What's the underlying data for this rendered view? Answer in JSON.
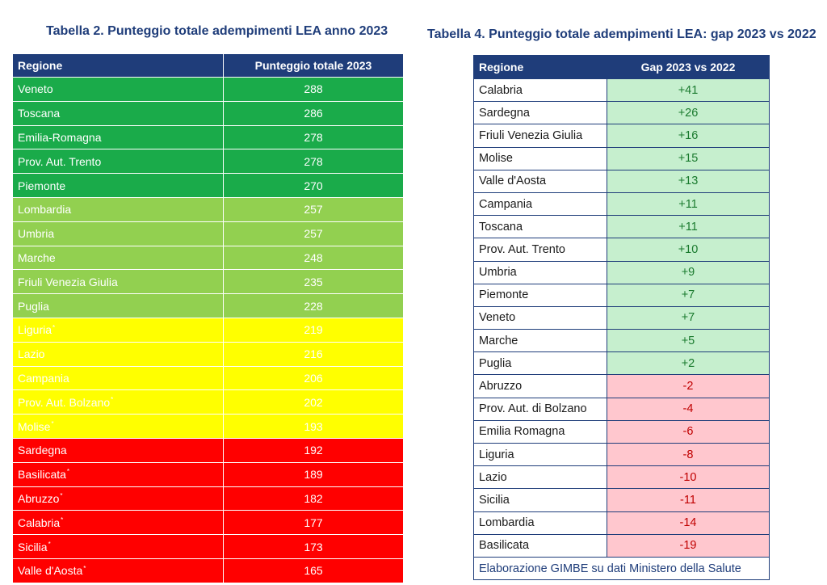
{
  "chart_data": [
    {
      "type": "table",
      "title": "Tabella 2.  Punteggio totale adempimenti LEA anno 2023",
      "columns": [
        "Regione",
        "Punteggio totale 2023"
      ],
      "rows": [
        {
          "region": "Veneto",
          "value": "288",
          "mark": "",
          "band": "green"
        },
        {
          "region": "Toscana",
          "value": "286",
          "mark": "",
          "band": "green"
        },
        {
          "region": "Emilia-Romagna",
          "value": "278",
          "mark": "",
          "band": "green"
        },
        {
          "region": "Prov. Aut. Trento",
          "value": "278",
          "mark": "",
          "band": "green"
        },
        {
          "region": "Piemonte",
          "value": "270",
          "mark": "",
          "band": "green"
        },
        {
          "region": "Lombardia",
          "value": "257",
          "mark": "",
          "band": "lgreen"
        },
        {
          "region": "Umbria",
          "value": "257",
          "mark": "",
          "band": "lgreen"
        },
        {
          "region": "Marche",
          "value": "248",
          "mark": "",
          "band": "lgreen"
        },
        {
          "region": "Friuli Venezia Giulia",
          "value": "235",
          "mark": "",
          "band": "lgreen"
        },
        {
          "region": "Puglia",
          "value": "228",
          "mark": "",
          "band": "lgreen"
        },
        {
          "region": "Liguria",
          "value": "219",
          "mark": "*",
          "band": "yellow"
        },
        {
          "region": "Lazio",
          "value": "216",
          "mark": "",
          "band": "yellow"
        },
        {
          "region": "Campania",
          "value": "206",
          "mark": "",
          "band": "yellow"
        },
        {
          "region": "Prov. Aut. Bolzano",
          "value": "202",
          "mark": "*",
          "band": "yellow"
        },
        {
          "region": "Molise",
          "value": "193",
          "mark": "*",
          "band": "yellow"
        },
        {
          "region": "Sardegna",
          "value": "192",
          "mark": "",
          "band": "red"
        },
        {
          "region": "Basilicata",
          "value": "189",
          "mark": "*",
          "band": "red"
        },
        {
          "region": "Abruzzo",
          "value": "182",
          "mark": "*",
          "band": "red"
        },
        {
          "region": "Calabria",
          "value": "177",
          "mark": "*",
          "band": "red"
        },
        {
          "region": "Sicilia",
          "value": "173",
          "mark": "*",
          "band": "red"
        },
        {
          "region": "Valle d'Aosta",
          "value": "165",
          "mark": "*",
          "band": "red"
        }
      ]
    },
    {
      "type": "table",
      "title": "Tabella 4.  Punteggio totale adempimenti LEA: gap 2023 vs 2022",
      "columns": [
        "Regione",
        "Gap 2023 vs 2022"
      ],
      "rows": [
        {
          "region": "Calabria",
          "value": "+41",
          "sign": "pos"
        },
        {
          "region": "Sardegna",
          "value": "+26",
          "sign": "pos"
        },
        {
          "region": "Friuli Venezia Giulia",
          "value": "+16",
          "sign": "pos"
        },
        {
          "region": "Molise",
          "value": "+15",
          "sign": "pos"
        },
        {
          "region": "Valle d'Aosta",
          "value": "+13",
          "sign": "pos"
        },
        {
          "region": "Campania",
          "value": "+11",
          "sign": "pos"
        },
        {
          "region": "Toscana",
          "value": "+11",
          "sign": "pos"
        },
        {
          "region": "Prov. Aut. Trento",
          "value": "+10",
          "sign": "pos"
        },
        {
          "region": "Umbria",
          "value": "+9",
          "sign": "pos"
        },
        {
          "region": "Piemonte",
          "value": "+7",
          "sign": "pos"
        },
        {
          "region": "Veneto",
          "value": "+7",
          "sign": "pos"
        },
        {
          "region": "Marche",
          "value": "+5",
          "sign": "pos"
        },
        {
          "region": "Puglia",
          "value": "+2",
          "sign": "pos"
        },
        {
          "region": "Abruzzo",
          "value": "-2",
          "sign": "neg"
        },
        {
          "region": "Prov. Aut. di Bolzano",
          "value": "-4",
          "sign": "neg"
        },
        {
          "region": "Emilia Romagna",
          "value": "-6",
          "sign": "neg"
        },
        {
          "region": "Liguria",
          "value": "-8",
          "sign": "neg"
        },
        {
          "region": "Lazio",
          "value": "-10",
          "sign": "neg"
        },
        {
          "region": "Sicilia",
          "value": "-11",
          "sign": "neg"
        },
        {
          "region": "Lombardia",
          "value": "-14",
          "sign": "neg"
        },
        {
          "region": "Basilicata",
          "value": "-19",
          "sign": "neg"
        }
      ],
      "source": "Elaborazione GIMBE su dati Ministero della Salute"
    }
  ],
  "colors": {
    "header": "#1f3d7a",
    "green": "#1aab4a",
    "lgreen": "#92d050",
    "yellow": "#ffff00",
    "red": "#ff0000",
    "pos_bg": "#c6efce",
    "neg_bg": "#ffc7ce"
  }
}
